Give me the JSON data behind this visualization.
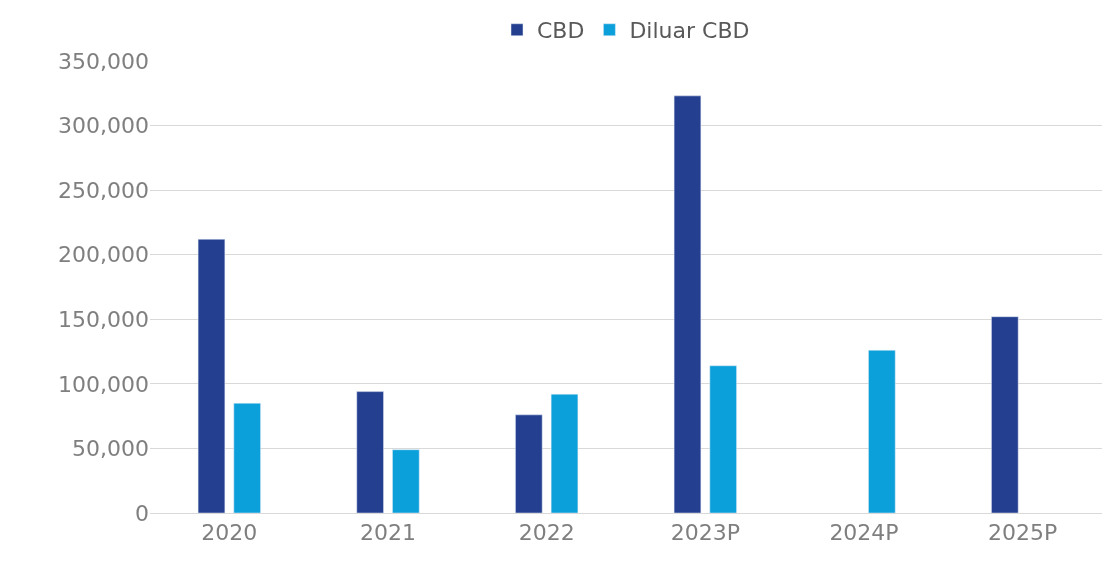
{
  "chart_data": {
    "type": "bar",
    "categories": [
      "2020",
      "2021",
      "2022",
      "2023P",
      "2024P",
      "2025P"
    ],
    "series": [
      {
        "name": "CBD",
        "color": "#243f8f",
        "values": [
          212000,
          94000,
          76000,
          323000,
          null,
          152000
        ]
      },
      {
        "name": "Diluar CBD",
        "color": "#0ca0db",
        "values": [
          85000,
          49000,
          92000,
          114000,
          126000,
          null
        ]
      }
    ],
    "ylim": [
      0,
      350000
    ],
    "yticks": [
      {
        "value": 0,
        "label": "0"
      },
      {
        "value": 50000,
        "label": "50,000"
      },
      {
        "value": 100000,
        "label": "100,000"
      },
      {
        "value": 150000,
        "label": "150,000"
      },
      {
        "value": 200000,
        "label": "200,000"
      },
      {
        "value": 250000,
        "label": "250,000"
      },
      {
        "value": 300000,
        "label": "300,000"
      },
      {
        "value": 350000,
        "label": "350,000"
      }
    ],
    "grid": "y",
    "legend": "top"
  }
}
